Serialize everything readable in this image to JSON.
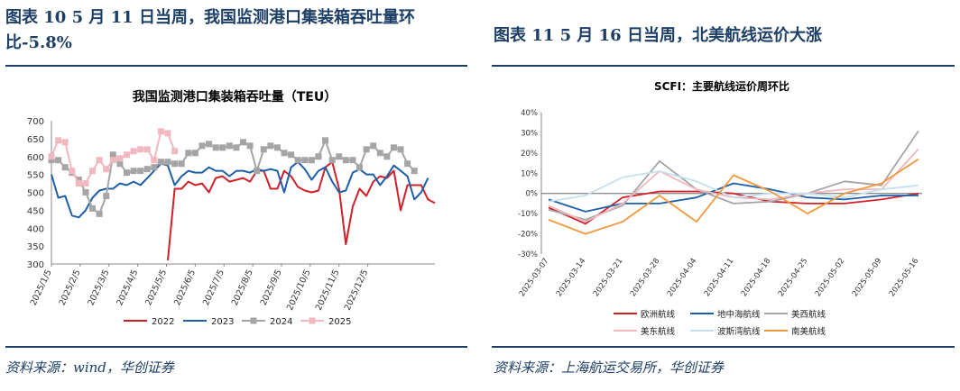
{
  "left": {
    "heading": "图表 10   5 月 11 日当周，我国监测港口集装箱吞吐量环比-5.8%",
    "heading_line1": "图表 10   5 月 11 日当周，我国监测港口集装箱吞吐量环",
    "heading_line2": "比-5.8%",
    "source": "资料来源：wind，华创证券",
    "chart_data": {
      "type": "line",
      "title": "我国监测港口集装箱吞吐量（TEU）",
      "ylim": [
        300,
        700
      ],
      "yticks": [
        "300",
        "350",
        "400",
        "450",
        "500",
        "550",
        "600",
        "650",
        "700"
      ],
      "xticks": [
        "2025/1/5",
        "2025/2/5",
        "2025/3/5",
        "2025/4/5",
        "2025/5/5",
        "2025/6/5",
        "2025/7/5",
        "2025/8/5",
        "2025/9/5",
        "2025/10/5",
        "2025/11/5",
        "2025/12/5"
      ],
      "legend_position": "bottom",
      "series": [
        {
          "name": "2022",
          "color": "#d0202a",
          "marker": "none",
          "values": [
            null,
            null,
            null,
            null,
            null,
            null,
            null,
            null,
            null,
            null,
            null,
            null,
            null,
            null,
            null,
            null,
            null,
            310,
            510,
            510,
            530,
            520,
            525,
            500,
            540,
            545,
            530,
            535,
            540,
            530,
            560,
            560,
            510,
            510,
            560,
            545,
            515,
            505,
            500,
            505,
            570,
            585,
            510,
            355,
            460,
            510,
            490,
            530,
            545,
            540,
            560,
            450,
            520,
            520,
            520,
            480,
            470
          ]
        },
        {
          "name": "2023",
          "color": "#1f5fa8",
          "marker": "none",
          "values": [
            550,
            485,
            490,
            435,
            430,
            450,
            485,
            505,
            510,
            510,
            525,
            520,
            530,
            520,
            540,
            560,
            580,
            575,
            520,
            545,
            560,
            555,
            555,
            570,
            560,
            560,
            545,
            560,
            560,
            555,
            565,
            560,
            565,
            560,
            500,
            570,
            585,
            565,
            535,
            560,
            570,
            530,
            500,
            505,
            555,
            565,
            550,
            550,
            520,
            545,
            575,
            560,
            545,
            480,
            500,
            540,
            null
          ]
        },
        {
          "name": "2024",
          "color": "#a5a5a5",
          "marker": "square",
          "values": [
            590,
            590,
            570,
            555,
            535,
            500,
            455,
            440,
            490,
            605,
            580,
            555,
            560,
            560,
            565,
            570,
            585,
            585,
            580,
            580,
            610,
            610,
            630,
            635,
            625,
            625,
            630,
            625,
            640,
            630,
            560,
            620,
            630,
            625,
            610,
            605,
            590,
            590,
            590,
            600,
            645,
            590,
            600,
            590,
            590,
            570,
            620,
            630,
            610,
            600,
            625,
            620,
            580,
            560,
            null,
            null,
            null
          ]
        },
        {
          "name": "2025",
          "color": "#f0b8bf",
          "marker": "square",
          "values": [
            600,
            645,
            640,
            560,
            525,
            525,
            560,
            590,
            565,
            590,
            595,
            605,
            615,
            620,
            620,
            590,
            670,
            665,
            615,
            null,
            null,
            null,
            null,
            null,
            null,
            null,
            null,
            null,
            null,
            null,
            null,
            null,
            null,
            null,
            null,
            null,
            null,
            null,
            null,
            null,
            null,
            null,
            null,
            null,
            null,
            null,
            null,
            null,
            null,
            null,
            null,
            null,
            null,
            null,
            null,
            null,
            null
          ]
        }
      ]
    }
  },
  "right": {
    "heading": "图表 11   5 月 16 日当周，北美航线运价大涨",
    "source": "资料来源：上海航运交易所，华创证券",
    "chart_data": {
      "type": "line",
      "title": "SCFI：主要航线运价周环比",
      "ylim": [
        -0.3,
        0.4
      ],
      "yticks": [
        "-30%",
        "-20%",
        "-10%",
        "0%",
        "10%",
        "20%",
        "30%",
        "40%"
      ],
      "xticks": [
        "2025-03-07",
        "2025-03-14",
        "2025-03-21",
        "2025-03-28",
        "2025-04-04",
        "2025-04-11",
        "2025-04-18",
        "2025-04-25",
        "2025-05-02",
        "2025-05-09",
        "2025-05-16"
      ],
      "legend_position": "bottom",
      "series": [
        {
          "name": "欧洲航线",
          "color": "#d0202a",
          "values": [
            -0.07,
            -0.15,
            -0.02,
            0.01,
            0.01,
            0.0,
            -0.04,
            -0.05,
            -0.05,
            -0.03,
            0.0
          ]
        },
        {
          "name": "地中海航线",
          "color": "#1f5fa8",
          "values": [
            -0.03,
            -0.09,
            -0.05,
            -0.05,
            -0.02,
            0.05,
            0.02,
            -0.02,
            -0.03,
            -0.01,
            -0.01
          ]
        },
        {
          "name": "美西航线",
          "color": "#a5a5a5",
          "values": [
            -0.08,
            -0.13,
            -0.06,
            0.16,
            0.02,
            -0.05,
            -0.04,
            0.0,
            0.06,
            0.04,
            0.31
          ]
        },
        {
          "name": "美东航线",
          "color": "#f0b8bf",
          "values": [
            -0.06,
            -0.14,
            -0.05,
            0.11,
            0.02,
            -0.02,
            -0.03,
            0.0,
            0.02,
            0.02,
            0.22
          ]
        },
        {
          "name": "波斯湾航线",
          "color": "#c5e0ec",
          "values": [
            -0.04,
            -0.01,
            0.08,
            0.11,
            0.06,
            -0.02,
            0.0,
            0.0,
            -0.02,
            0.02,
            0.04
          ]
        },
        {
          "name": "南美航线",
          "color": "#f39a3f",
          "values": [
            -0.13,
            -0.2,
            -0.14,
            -0.01,
            -0.14,
            0.09,
            0.01,
            -0.1,
            0.0,
            0.05,
            0.17
          ]
        }
      ]
    }
  }
}
